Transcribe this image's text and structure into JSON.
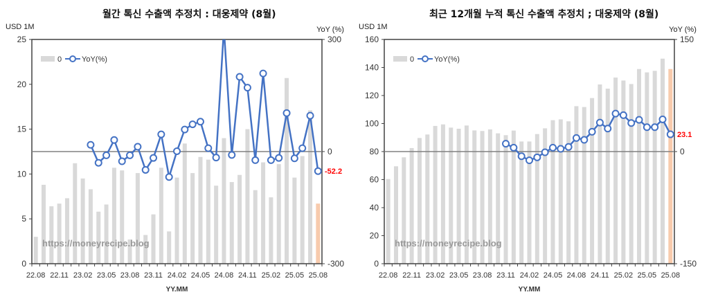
{
  "chart_data": [
    {
      "type": "bar",
      "title": "월간 톡신 수출액 추정치 : 대웅제약 (8월)",
      "ylabel": "USD 1M",
      "y2label": "YoY (%)",
      "xlabel": "YY.MM",
      "ylim": [
        0,
        25
      ],
      "yticks": [
        0,
        5,
        10,
        15,
        20,
        25
      ],
      "y2lim": [
        -300,
        300
      ],
      "y2ticks": [
        -300,
        0,
        300
      ],
      "grid": false,
      "legend": "top-left",
      "watermark": "https://moneyrecipe.blog",
      "categories": [
        "22.08",
        "22.09",
        "22.10",
        "22.11",
        "22.12",
        "23.01",
        "23.02",
        "23.03",
        "23.04",
        "23.05",
        "23.06",
        "23.07",
        "23.08",
        "23.09",
        "23.10",
        "23.11",
        "23.12",
        "24.01",
        "24.02",
        "24.03",
        "24.04",
        "24.05",
        "24.06",
        "24.07",
        "24.08",
        "24.09",
        "24.10",
        "24.11",
        "24.12",
        "25.01",
        "25.02",
        "25.03",
        "25.04",
        "25.05",
        "25.06",
        "25.07",
        "25.08"
      ],
      "xticklabels": [
        "22.08",
        "22.11",
        "23.02",
        "23.05",
        "23.08",
        "23.11",
        "24.02",
        "24.05",
        "24.08",
        "24.11",
        "25.02",
        "25.05",
        "25.08"
      ],
      "series": [
        {
          "name": "0",
          "kind": "bar",
          "axis": "left",
          "values": [
            3.0,
            8.8,
            6.4,
            6.7,
            7.3,
            11.2,
            9.5,
            8.3,
            5.8,
            6.6,
            10.7,
            10.4,
            2.7,
            10.1,
            3.2,
            5.5,
            10.7,
            3.6,
            9.6,
            13.4,
            10.1,
            11.9,
            11.6,
            8.7,
            14.0,
            9.1,
            9.9,
            15.0,
            8.2,
            11.3,
            7.4,
            11.1,
            20.7,
            9.6,
            12.0,
            17.1,
            6.7
          ]
        },
        {
          "name": "YoY(%)",
          "kind": "line",
          "axis": "right",
          "values": [
            null,
            null,
            null,
            null,
            null,
            null,
            null,
            18,
            -30,
            -10,
            31,
            -26,
            -10,
            13,
            -49,
            -17,
            46,
            -68,
            1,
            59,
            73,
            80,
            9,
            -16,
            330,
            -9,
            200,
            171,
            -23,
            209,
            -23,
            -17,
            103,
            -18,
            9,
            96,
            -52.2
          ]
        }
      ],
      "last_label": "-52.2",
      "colors": {
        "bar": "#d9d9d9",
        "bar_highlight": "#f8cbad",
        "line": "#4472c4",
        "label": "#ff0000",
        "zero_line": "#808080"
      }
    },
    {
      "type": "bar",
      "title": "최근 12개월 누적 톡신 수출액 추정치 ; 대웅제약 (8월)",
      "ylabel": "USD 1M",
      "y2label": "YoY (%)",
      "xlabel": "YY.MM",
      "ylim": [
        0,
        160
      ],
      "yticks": [
        0,
        20,
        40,
        60,
        80,
        100,
        120,
        140,
        160
      ],
      "y2lim": [
        -150,
        150
      ],
      "y2ticks": [
        -150,
        0,
        150
      ],
      "grid": false,
      "legend": "top-left",
      "watermark": "https://moneyrecipe.blog",
      "categories": [
        "22.08",
        "22.09",
        "22.10",
        "22.11",
        "22.12",
        "23.01",
        "23.02",
        "23.03",
        "23.04",
        "23.05",
        "23.06",
        "23.07",
        "23.08",
        "23.09",
        "23.10",
        "23.11",
        "23.12",
        "24.01",
        "24.02",
        "24.03",
        "24.04",
        "24.05",
        "24.06",
        "24.07",
        "24.08",
        "24.09",
        "24.10",
        "24.11",
        "24.12",
        "25.01",
        "25.02",
        "25.03",
        "25.04",
        "25.05",
        "25.06",
        "25.07",
        "25.08"
      ],
      "xticklabels": [
        "22.08",
        "22.11",
        "23.02",
        "23.05",
        "23.08",
        "23.11",
        "24.02",
        "24.05",
        "24.08",
        "24.11",
        "25.02",
        "25.05",
        "25.08"
      ],
      "series": [
        {
          "name": "0",
          "kind": "bar",
          "axis": "left",
          "values": [
            60.4,
            69.5,
            75.9,
            82.5,
            89.7,
            92.2,
            98.3,
            99.4,
            97.1,
            96.3,
            98.6,
            95.1,
            94.7,
            95.8,
            93.0,
            91.7,
            95.0,
            87.2,
            87.2,
            92.5,
            96.6,
            102.4,
            103.0,
            101.6,
            112.4,
            111.8,
            118.2,
            127.9,
            124.9,
            132.8,
            130.7,
            128.2,
            138.9,
            136.5,
            137.6,
            146.3,
            138.9
          ]
        },
        {
          "name": "YoY(%)",
          "kind": "line",
          "axis": "right",
          "values": [
            null,
            null,
            null,
            null,
            null,
            null,
            null,
            null,
            null,
            null,
            null,
            null,
            null,
            null,
            null,
            10.5,
            5.2,
            -6.2,
            -11.7,
            -7.7,
            -0.9,
            5.2,
            3.7,
            6.2,
            18.2,
            15.7,
            26.5,
            38.8,
            30.8,
            50.8,
            48.7,
            38.2,
            42.5,
            32.6,
            32.6,
            43.1,
            23.1
          ]
        }
      ],
      "last_label": "23.1",
      "colors": {
        "bar": "#d9d9d9",
        "bar_highlight": "#f8cbad",
        "line": "#4472c4",
        "label": "#ff0000",
        "zero_line": "#808080"
      }
    }
  ]
}
